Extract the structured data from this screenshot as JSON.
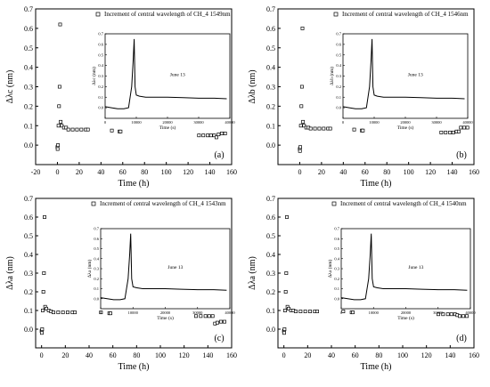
{
  "chart_data": [
    {
      "type": "scatter",
      "panel_label": "(a)",
      "legend": "Increment of central wavelength of CH_4 1549nm",
      "xlabel": "Time (h)",
      "ylabel": "Δλc (nm)",
      "xlim": [
        -20,
        160
      ],
      "ylim": [
        -0.1,
        0.7
      ],
      "xticks": [
        "-20",
        "0",
        "20",
        "40",
        "60",
        "80",
        "100",
        "120",
        "140",
        "160"
      ],
      "yticks": [
        "0.0",
        "0.1",
        "0.2",
        "0.3",
        "0.4",
        "0.5",
        "0.6",
        "0.7"
      ],
      "series": [
        {
          "x": [
            0,
            0.2,
            0.5,
            1,
            1.5,
            2,
            2.5,
            3,
            4,
            6,
            8,
            10,
            14,
            18,
            22,
            26,
            28
          ],
          "y": [
            -0.01,
            -0.02,
            0.0,
            0.1,
            0.2,
            0.3,
            0.62,
            0.12,
            0.1,
            0.09,
            0.09,
            0.08,
            0.08,
            0.08,
            0.08,
            0.08,
            0.08
          ]
        },
        {
          "x": [
            50,
            57,
            58
          ],
          "y": [
            0.075,
            0.07,
            0.07
          ]
        },
        {
          "x": [
            130,
            134,
            138,
            141,
            144,
            146,
            148,
            151,
            154
          ],
          "y": [
            0.05,
            0.05,
            0.05,
            0.05,
            0.05,
            0.04,
            0.055,
            0.06,
            0.06
          ]
        }
      ],
      "inset": {
        "xlabel": "Time (s)",
        "ylabel": "Δλc (nm)",
        "annotation": "June 13",
        "xlim": [
          0,
          40000
        ],
        "ylim": [
          -0.1,
          0.7
        ],
        "xticks": [
          "0",
          "10000",
          "20000",
          "30000",
          "40000"
        ],
        "yticks": [
          "0.0",
          "0.1",
          "0.2",
          "0.3",
          "0.4",
          "0.5",
          "0.6",
          "0.7"
        ],
        "x": [
          0,
          2000,
          4000,
          6000,
          7500,
          8500,
          9000,
          9300,
          9600,
          10000,
          11000,
          13000,
          16000,
          20000,
          25000,
          30000,
          35000,
          39000
        ],
        "y": [
          0.01,
          0.0,
          -0.01,
          -0.01,
          0.0,
          0.2,
          0.45,
          0.65,
          0.2,
          0.12,
          0.11,
          0.1,
          0.1,
          0.1,
          0.095,
          0.09,
          0.09,
          0.085
        ]
      }
    },
    {
      "type": "scatter",
      "panel_label": "(b)",
      "legend": "Increment of central wavelength of CH_4 1546nm",
      "xlabel": "Time (h)",
      "ylabel": "Δλb (nm)",
      "xlim": [
        -20,
        160
      ],
      "ylim": [
        -0.1,
        0.7
      ],
      "xticks": [
        "0",
        "20",
        "40",
        "60",
        "80",
        "100",
        "120",
        "140",
        "160"
      ],
      "yticks": [
        "0.0",
        "0.1",
        "0.2",
        "0.3",
        "0.4",
        "0.5",
        "0.6",
        "0.7"
      ],
      "series": [
        {
          "x": [
            0,
            0.2,
            0.5,
            1,
            1.5,
            2,
            2.5,
            3,
            4,
            6,
            8,
            10,
            14,
            18,
            22,
            26,
            28
          ],
          "y": [
            -0.02,
            -0.03,
            -0.01,
            0.1,
            0.2,
            0.3,
            0.6,
            0.12,
            0.1,
            0.09,
            0.09,
            0.085,
            0.085,
            0.085,
            0.085,
            0.085,
            0.085
          ]
        },
        {
          "x": [
            50,
            57,
            58
          ],
          "y": [
            0.08,
            0.075,
            0.075
          ]
        },
        {
          "x": [
            130,
            134,
            138,
            141,
            144,
            146,
            148,
            151,
            154
          ],
          "y": [
            0.065,
            0.065,
            0.065,
            0.065,
            0.07,
            0.07,
            0.09,
            0.09,
            0.09
          ]
        }
      ],
      "inset": {
        "xlabel": "Time (s)",
        "ylabel": "Δλb (nm)",
        "annotation": "June 13",
        "xlim": [
          0,
          40000
        ],
        "ylim": [
          -0.1,
          0.7
        ],
        "xticks": [
          "0",
          "10000",
          "20000",
          "30000",
          "40000"
        ],
        "yticks": [
          "0.0",
          "0.1",
          "0.2",
          "0.3",
          "0.4",
          "0.5",
          "0.6",
          "0.7"
        ],
        "x": [
          0,
          2000,
          4000,
          6000,
          7500,
          8500,
          9000,
          9300,
          9600,
          10000,
          11000,
          13000,
          16000,
          20000,
          25000,
          30000,
          35000,
          39000
        ],
        "y": [
          0.01,
          0.0,
          -0.01,
          -0.01,
          0.0,
          0.2,
          0.45,
          0.65,
          0.2,
          0.12,
          0.11,
          0.1,
          0.1,
          0.1,
          0.095,
          0.09,
          0.09,
          0.085
        ]
      }
    },
    {
      "type": "scatter",
      "panel_label": "(c)",
      "legend": "Increment of central wavelength of CH_4 1543nm",
      "xlabel": "Time (h)",
      "ylabel": "Δλa (nm)",
      "xlim": [
        -5,
        160
      ],
      "ylim": [
        -0.1,
        0.7
      ],
      "xticks": [
        "0",
        "20",
        "40",
        "60",
        "80",
        "100",
        "120",
        "140",
        "160"
      ],
      "yticks": [
        "0.0",
        "0.1",
        "0.2",
        "0.3",
        "0.4",
        "0.5",
        "0.6",
        "0.7"
      ],
      "series": [
        {
          "x": [
            0,
            0.2,
            0.5,
            1,
            1.5,
            2,
            2.5,
            3,
            4,
            6,
            8,
            10,
            14,
            18,
            22,
            26,
            28
          ],
          "y": [
            -0.01,
            -0.02,
            0.0,
            0.1,
            0.2,
            0.3,
            0.6,
            0.12,
            0.11,
            0.1,
            0.095,
            0.09,
            0.09,
            0.09,
            0.09,
            0.09,
            0.09
          ]
        },
        {
          "x": [
            50,
            57,
            58
          ],
          "y": [
            0.09,
            0.085,
            0.085
          ]
        },
        {
          "x": [
            130,
            134,
            138,
            141,
            144,
            146,
            148,
            151,
            154
          ],
          "y": [
            0.07,
            0.07,
            0.07,
            0.07,
            0.07,
            0.03,
            0.035,
            0.04,
            0.04
          ]
        }
      ],
      "inset": {
        "xlabel": "Time (s)",
        "ylabel": "Δλa (nm)",
        "annotation": "June 13",
        "xlim": [
          0,
          40000
        ],
        "ylim": [
          -0.1,
          0.7
        ],
        "xticks": [
          "0",
          "10000",
          "20000",
          "30000",
          "40000"
        ],
        "yticks": [
          "0.0",
          "0.1",
          "0.2",
          "0.3",
          "0.4",
          "0.5",
          "0.6",
          "0.7"
        ],
        "x": [
          0,
          2000,
          4000,
          6000,
          7500,
          8500,
          9000,
          9300,
          9600,
          10000,
          11000,
          13000,
          16000,
          20000,
          25000,
          30000,
          35000,
          39000
        ],
        "y": [
          0.01,
          0.0,
          -0.01,
          -0.01,
          0.0,
          0.2,
          0.45,
          0.65,
          0.2,
          0.12,
          0.11,
          0.1,
          0.1,
          0.1,
          0.095,
          0.09,
          0.09,
          0.085
        ]
      }
    },
    {
      "type": "scatter",
      "panel_label": "(d)",
      "legend": "Increment of central wavelength of CH_4 1540nm",
      "xlabel": "Time (h)",
      "ylabel": "Δλa (nm)",
      "xlim": [
        -5,
        160
      ],
      "ylim": [
        -0.1,
        0.7
      ],
      "xticks": [
        "0",
        "20",
        "40",
        "60",
        "80",
        "100",
        "120",
        "140",
        "160"
      ],
      "yticks": [
        "0.0",
        "0.1",
        "0.2",
        "0.3",
        "0.4",
        "0.5",
        "0.6",
        "0.7"
      ],
      "series": [
        {
          "x": [
            0,
            0.2,
            0.5,
            1,
            1.5,
            2,
            2.5,
            3,
            4,
            6,
            8,
            10,
            14,
            18,
            22,
            26,
            28
          ],
          "y": [
            -0.01,
            -0.02,
            0.0,
            0.1,
            0.2,
            0.3,
            0.6,
            0.12,
            0.11,
            0.1,
            0.1,
            0.095,
            0.095,
            0.095,
            0.095,
            0.095,
            0.095
          ]
        },
        {
          "x": [
            50,
            57,
            58
          ],
          "y": [
            0.095,
            0.09,
            0.09
          ]
        },
        {
          "x": [
            130,
            134,
            138,
            141,
            144,
            146,
            148,
            151,
            154
          ],
          "y": [
            0.08,
            0.08,
            0.08,
            0.08,
            0.08,
            0.075,
            0.07,
            0.07,
            0.07
          ]
        }
      ],
      "inset": {
        "xlabel": "Time (s)",
        "ylabel": "Δλa (nm)",
        "annotation": "June 13",
        "xlim": [
          0,
          40000
        ],
        "ylim": [
          -0.1,
          0.7
        ],
        "xticks": [
          "0",
          "10000",
          "20000",
          "30000",
          "40000"
        ],
        "yticks": [
          "0.0",
          "0.1",
          "0.2",
          "0.3",
          "0.4",
          "0.5",
          "0.6",
          "0.7"
        ],
        "x": [
          0,
          2000,
          4000,
          6000,
          7500,
          8500,
          9000,
          9300,
          9600,
          10000,
          11000,
          13000,
          16000,
          20000,
          25000,
          30000,
          35000,
          39000
        ],
        "y": [
          0.01,
          0.0,
          -0.01,
          -0.01,
          0.0,
          0.2,
          0.45,
          0.65,
          0.2,
          0.12,
          0.11,
          0.1,
          0.1,
          0.1,
          0.095,
          0.09,
          0.09,
          0.085
        ]
      }
    }
  ]
}
